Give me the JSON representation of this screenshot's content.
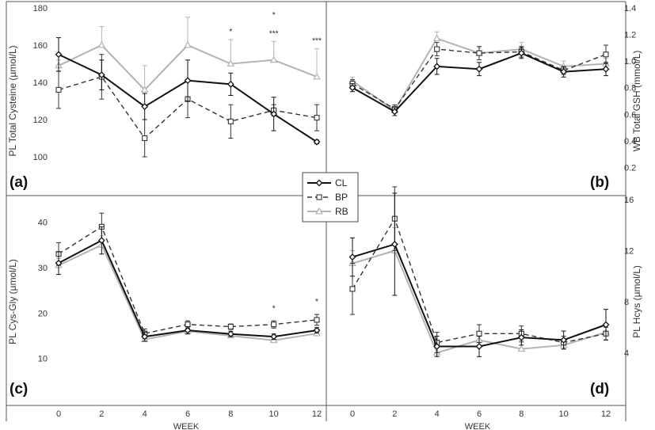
{
  "legend": {
    "entries": [
      {
        "name": "CL",
        "color": "#111111",
        "dash": "",
        "marker": "diamond",
        "width": 2
      },
      {
        "name": "BP",
        "color": "#333333",
        "dash": "6,4",
        "marker": "square",
        "width": 1.4
      },
      {
        "name": "RB",
        "color": "#b3b3b3",
        "dash": "",
        "marker": "triangle",
        "width": 2
      }
    ]
  },
  "chart_data": [
    {
      "id": "a",
      "type": "line",
      "panel_label": "(a)",
      "ylabel": "PL Total Cysteine (µmol/L)",
      "xlabel": "",
      "ylim": [
        80,
        180
      ],
      "yticks": [
        100,
        120,
        140,
        160,
        180
      ],
      "x": [
        0,
        2,
        4,
        6,
        8,
        10,
        12
      ],
      "xticks": [],
      "yaxis": "left",
      "series": [
        {
          "name": "CL",
          "values": [
            155,
            144,
            127,
            141,
            139,
            123,
            108
          ],
          "errors": [
            9,
            8,
            7,
            11,
            6,
            9,
            1
          ]
        },
        {
          "name": "BP",
          "values": [
            136,
            143,
            110,
            131,
            119,
            125,
            121
          ],
          "errors": [
            10,
            12,
            10,
            10,
            9,
            3,
            7
          ]
        },
        {
          "name": "RB",
          "values": [
            149,
            160,
            136,
            160,
            150,
            152,
            143
          ],
          "errors": [
            3,
            10,
            13,
            15,
            13,
            10,
            15
          ]
        }
      ],
      "annotations": [
        {
          "x": 8,
          "y": 166,
          "text": "*"
        },
        {
          "x": 10,
          "y": 175,
          "text": "*"
        },
        {
          "x": 10,
          "y": 165,
          "text": "***"
        },
        {
          "x": 12,
          "y": 161,
          "text": "***"
        }
      ]
    },
    {
      "id": "b",
      "type": "line",
      "panel_label": "(b)",
      "ylabel": "WB Total GSH (mmol/L)",
      "xlabel": "",
      "ylim": [
        0,
        1.4
      ],
      "yticks": [
        0.2,
        0.4,
        0.6,
        0.8,
        1.0,
        1.2,
        1.4
      ],
      "ytick_labels": [
        "0.2",
        "0.4",
        "0.6",
        "0.8",
        "1.0",
        "1.2",
        "1.4"
      ],
      "x": [
        0,
        2,
        4,
        6,
        8,
        10,
        12
      ],
      "xticks": [],
      "yaxis": "right",
      "series": [
        {
          "name": "CL",
          "values": [
            0.8,
            0.62,
            0.96,
            0.94,
            1.06,
            0.92,
            0.94
          ],
          "errors": [
            0.03,
            0.03,
            0.06,
            0.05,
            0.04,
            0.04,
            0.05
          ]
        },
        {
          "name": "BP",
          "values": [
            0.83,
            0.64,
            1.09,
            1.06,
            1.07,
            0.93,
            1.05
          ],
          "errors": [
            0.03,
            0.03,
            0.05,
            0.05,
            0.04,
            0.03,
            0.07
          ]
        },
        {
          "name": "RB",
          "values": [
            0.85,
            0.63,
            1.17,
            1.06,
            1.09,
            0.96,
            0.98
          ],
          "errors": [
            0.03,
            0.04,
            0.05,
            0.04,
            0.05,
            0.04,
            0.04
          ]
        }
      ],
      "annotations": []
    },
    {
      "id": "c",
      "type": "line",
      "panel_label": "(c)",
      "ylabel": "PL Cys-Gly (µmol/L)",
      "xlabel": "WEEK",
      "ylim": [
        0,
        45
      ],
      "yticks": [
        10,
        20,
        30,
        40
      ],
      "x": [
        0,
        2,
        4,
        6,
        8,
        10,
        12
      ],
      "xticks": [
        0,
        2,
        4,
        6,
        8,
        10,
        12
      ],
      "yaxis": "left",
      "series": [
        {
          "name": "CL",
          "values": [
            31,
            36,
            14.8,
            16.2,
            15.4,
            14.8,
            16.2
          ],
          "errors": [
            2.5,
            3,
            1,
            0.8,
            0.6,
            0.6,
            0.6
          ]
        },
        {
          "name": "BP",
          "values": [
            33,
            39,
            15.5,
            17.5,
            17,
            17.5,
            18.5
          ],
          "errors": [
            2.5,
            3,
            1,
            0.8,
            0.6,
            0.8,
            1.2
          ]
        },
        {
          "name": "RB",
          "values": [
            30.5,
            35,
            14.2,
            16,
            15,
            14,
            15.5
          ],
          "errors": [
            1.5,
            2,
            0.8,
            0.6,
            0.6,
            0.6,
            0.6
          ]
        }
      ],
      "annotations": [
        {
          "x": 10,
          "y": 20.5,
          "text": "*"
        },
        {
          "x": 12,
          "y": 22,
          "text": "*"
        }
      ]
    },
    {
      "id": "d",
      "type": "line",
      "panel_label": "(d)",
      "ylabel": "PL Hcys (µmol/L)",
      "xlabel": "WEEK",
      "ylim": [
        0,
        16
      ],
      "yticks": [
        4,
        8,
        12,
        16
      ],
      "x": [
        0,
        2,
        4,
        6,
        8,
        10,
        12
      ],
      "xticks": [
        0,
        2,
        4,
        6,
        8,
        10,
        12
      ],
      "yaxis": "right",
      "series": [
        {
          "name": "CL",
          "values": [
            11.5,
            12.5,
            4.5,
            4.5,
            5.2,
            5,
            6.2
          ],
          "errors": [
            1.5,
            4,
            0.8,
            0.8,
            0.6,
            0.7,
            1.2
          ]
        },
        {
          "name": "BP",
          "values": [
            9,
            14.5,
            4.8,
            5.5,
            5.5,
            4.8,
            5.5
          ],
          "errors": [
            2,
            2.5,
            0.8,
            0.7,
            0.6,
            0.5,
            0.5
          ]
        },
        {
          "name": "RB",
          "values": [
            11,
            12,
            4,
            5,
            4.3,
            4.6,
            5.6
          ],
          "errors": [
            1,
            1.8,
            0.5,
            0.6,
            0.5,
            0.5,
            0.4
          ]
        }
      ],
      "annotations": []
    }
  ]
}
